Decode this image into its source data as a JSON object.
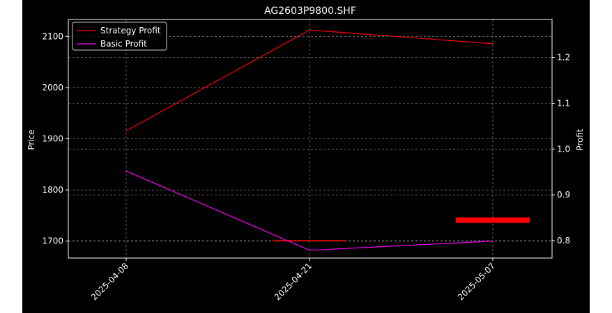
{
  "chart_data": {
    "type": "line",
    "title": "AG2603P9800.SHF",
    "x": [
      "2025-04-08",
      "2025-04-21",
      "2025-05-07"
    ],
    "y_left": {
      "label": "Price",
      "range": [
        1667,
        2133
      ],
      "ticks": [
        1700,
        1800,
        1900,
        2000,
        2100
      ]
    },
    "y_right": {
      "label": "Profit",
      "range": [
        0.762,
        1.283
      ],
      "ticks": [
        0.8,
        0.9,
        1.0,
        1.1,
        1.2
      ],
      "tick_labels": [
        "0.8",
        "0.9",
        "1.0",
        "1.1",
        "1.2"
      ]
    },
    "series": [
      {
        "name": "Strategy Profit",
        "axis": "right",
        "color": "#ff0000",
        "values": [
          1.04,
          1.26,
          1.23
        ]
      },
      {
        "name": "Basic Profit",
        "axis": "right",
        "color": "#ff00ff",
        "values": [
          0.952,
          0.779,
          0.799
        ]
      }
    ],
    "markers": [
      {
        "kind": "horizontal-segment",
        "axis": "left",
        "color": "#ff0000",
        "x_center": "2025-04-21",
        "y": 1701,
        "weight": "thin"
      },
      {
        "kind": "horizontal-segment",
        "axis": "left",
        "color": "#ff0000",
        "x_center": "2025-05-07",
        "y": 1741,
        "weight": "thick"
      }
    ],
    "grid": true,
    "legend": "top-left",
    "background": "#000000",
    "foreground": "#ffffff"
  }
}
